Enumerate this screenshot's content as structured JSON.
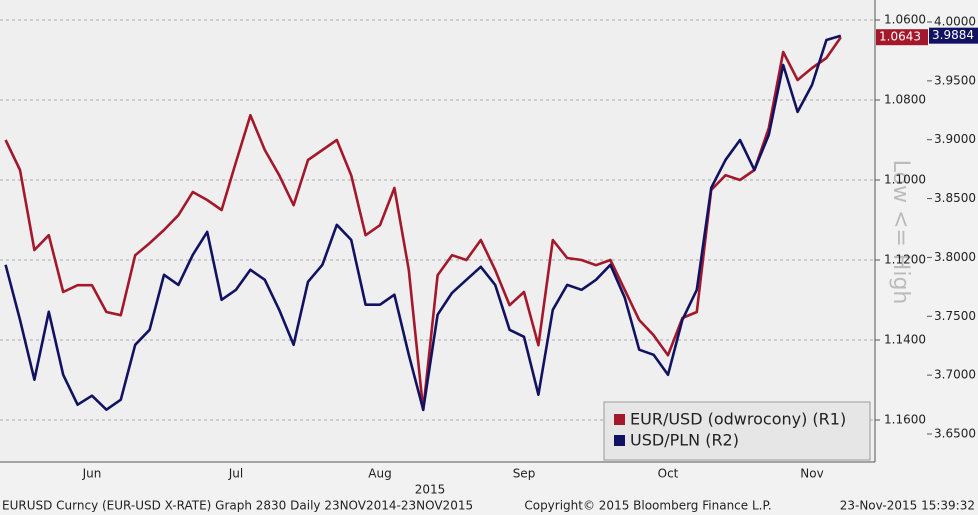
{
  "chart_data": {
    "type": "line",
    "categories": [
      null,
      null,
      null,
      null,
      null,
      null,
      "Jun",
      null,
      null,
      null,
      null,
      null,
      null,
      null,
      null,
      null,
      "Jul",
      null,
      null,
      null,
      null,
      null,
      null,
      null,
      null,
      null,
      "Aug",
      null,
      null,
      null,
      null,
      null,
      null,
      null,
      null,
      null,
      "Sep",
      null,
      null,
      null,
      null,
      null,
      null,
      null,
      null,
      null,
      "Oct",
      null,
      null,
      null,
      null,
      null,
      null,
      null,
      null,
      null,
      "Nov",
      null,
      null
    ],
    "x_year_label": "2015",
    "right_axis_title": "Low <= High",
    "ylim": [
      1.1705,
      1.055
    ],
    "yticks": [
      {
        "value": 1.06,
        "label": "1.0600"
      },
      {
        "value": 1.08,
        "label": "1.0800"
      },
      {
        "value": 1.1,
        "label": "1.1000"
      },
      {
        "value": 1.12,
        "label": "1.1200"
      },
      {
        "value": 1.14,
        "label": "1.1400"
      },
      {
        "value": 1.16,
        "label": "1.1600"
      }
    ],
    "y2lim": [
      3.6262,
      4.0187
    ],
    "y2ticks": [
      {
        "value": 4.0,
        "label": "4.0000"
      },
      {
        "value": 3.95,
        "label": "3.9500"
      },
      {
        "value": 3.9,
        "label": "3.9000"
      },
      {
        "value": 3.85,
        "label": "3.8500"
      },
      {
        "value": 3.8,
        "label": "3.8000"
      },
      {
        "value": 3.75,
        "label": "3.7500"
      },
      {
        "value": 3.7,
        "label": "3.7000"
      },
      {
        "value": 3.65,
        "label": "3.6500"
      }
    ],
    "grid": true,
    "legend": "bottom-right",
    "series": [
      {
        "name": "EUR/USD (odwrocony) (R1)",
        "color": "#a3182b",
        "values": [
          1.09,
          1.0975,
          1.1175,
          1.1138,
          1.128,
          1.1263,
          1.1263,
          1.133,
          1.1338,
          1.1188,
          1.1158,
          1.1125,
          1.1088,
          1.103,
          1.105,
          1.1075,
          1.0955,
          1.0838,
          1.0925,
          1.0988,
          1.1063,
          1.095,
          1.0925,
          1.09,
          1.0988,
          1.1138,
          1.1113,
          1.102,
          1.1225,
          1.1575,
          1.1238,
          1.1188,
          1.12,
          1.115,
          1.1225,
          1.1313,
          1.128,
          1.1413,
          1.115,
          1.1195,
          1.12,
          1.1213,
          1.12,
          1.1275,
          1.135,
          1.1388,
          1.1438,
          1.1345,
          1.133,
          1.1025,
          1.0988,
          1.1,
          1.0975,
          1.087,
          1.068,
          1.075,
          1.072,
          1.0695,
          1.0643
        ],
        "value_labels": [
          null,
          null,
          null,
          null,
          null,
          null,
          null,
          null,
          null,
          null,
          null,
          null,
          null,
          null,
          null,
          null,
          null,
          null,
          null,
          null,
          null,
          null,
          null,
          null,
          null,
          null,
          null,
          null,
          null,
          null,
          null,
          null,
          null,
          null,
          null,
          null,
          null,
          null,
          null,
          null,
          null,
          null,
          null,
          null,
          null,
          null,
          null,
          null,
          null,
          null,
          null,
          null,
          null,
          null,
          null,
          null,
          null,
          null,
          "1.0643"
        ]
      },
      {
        "name": "USD/PLN (R2)",
        "color": "#111261",
        "axis": "y2",
        "values": [
          3.7937,
          3.747,
          3.6961,
          3.7538,
          3.7003,
          3.6749,
          3.6825,
          3.6706,
          3.6791,
          3.7258,
          3.7385,
          3.7852,
          3.7767,
          3.8022,
          3.8217,
          3.764,
          3.7725,
          3.7895,
          3.781,
          3.7555,
          3.7258,
          3.7793,
          3.7937,
          3.8277,
          3.8149,
          3.7598,
          3.7598,
          3.7683,
          3.7173,
          3.6706,
          3.7513,
          3.7699,
          3.781,
          3.792,
          3.7767,
          3.7385,
          3.7326,
          3.6834,
          3.7555,
          3.7767,
          3.7725,
          3.781,
          3.7937,
          3.7657,
          3.7216,
          3.7173,
          3.7003,
          3.747,
          3.7725,
          3.8591,
          3.8829,
          3.8998,
          3.8744,
          3.9041,
          3.9635,
          3.9236,
          3.9465,
          3.9847,
          3.9884
        ],
        "value_labels": [
          null,
          null,
          null,
          null,
          null,
          null,
          null,
          null,
          null,
          null,
          null,
          null,
          null,
          null,
          null,
          null,
          null,
          null,
          null,
          null,
          null,
          null,
          null,
          null,
          null,
          null,
          null,
          null,
          null,
          null,
          null,
          null,
          null,
          null,
          null,
          null,
          null,
          null,
          null,
          null,
          null,
          null,
          null,
          null,
          null,
          null,
          null,
          null,
          null,
          null,
          null,
          null,
          null,
          null,
          null,
          null,
          null,
          null,
          "3.9884"
        ]
      }
    ]
  },
  "footer": {
    "left": "EURUSD Curncy (EUR-USD X-RATE) Graph 2830  Daily 23NOV2014-23NOV2015",
    "center": "Copyright© 2015 Bloomberg Finance L.P.",
    "right": "23-Nov-2015 15:39:32"
  }
}
